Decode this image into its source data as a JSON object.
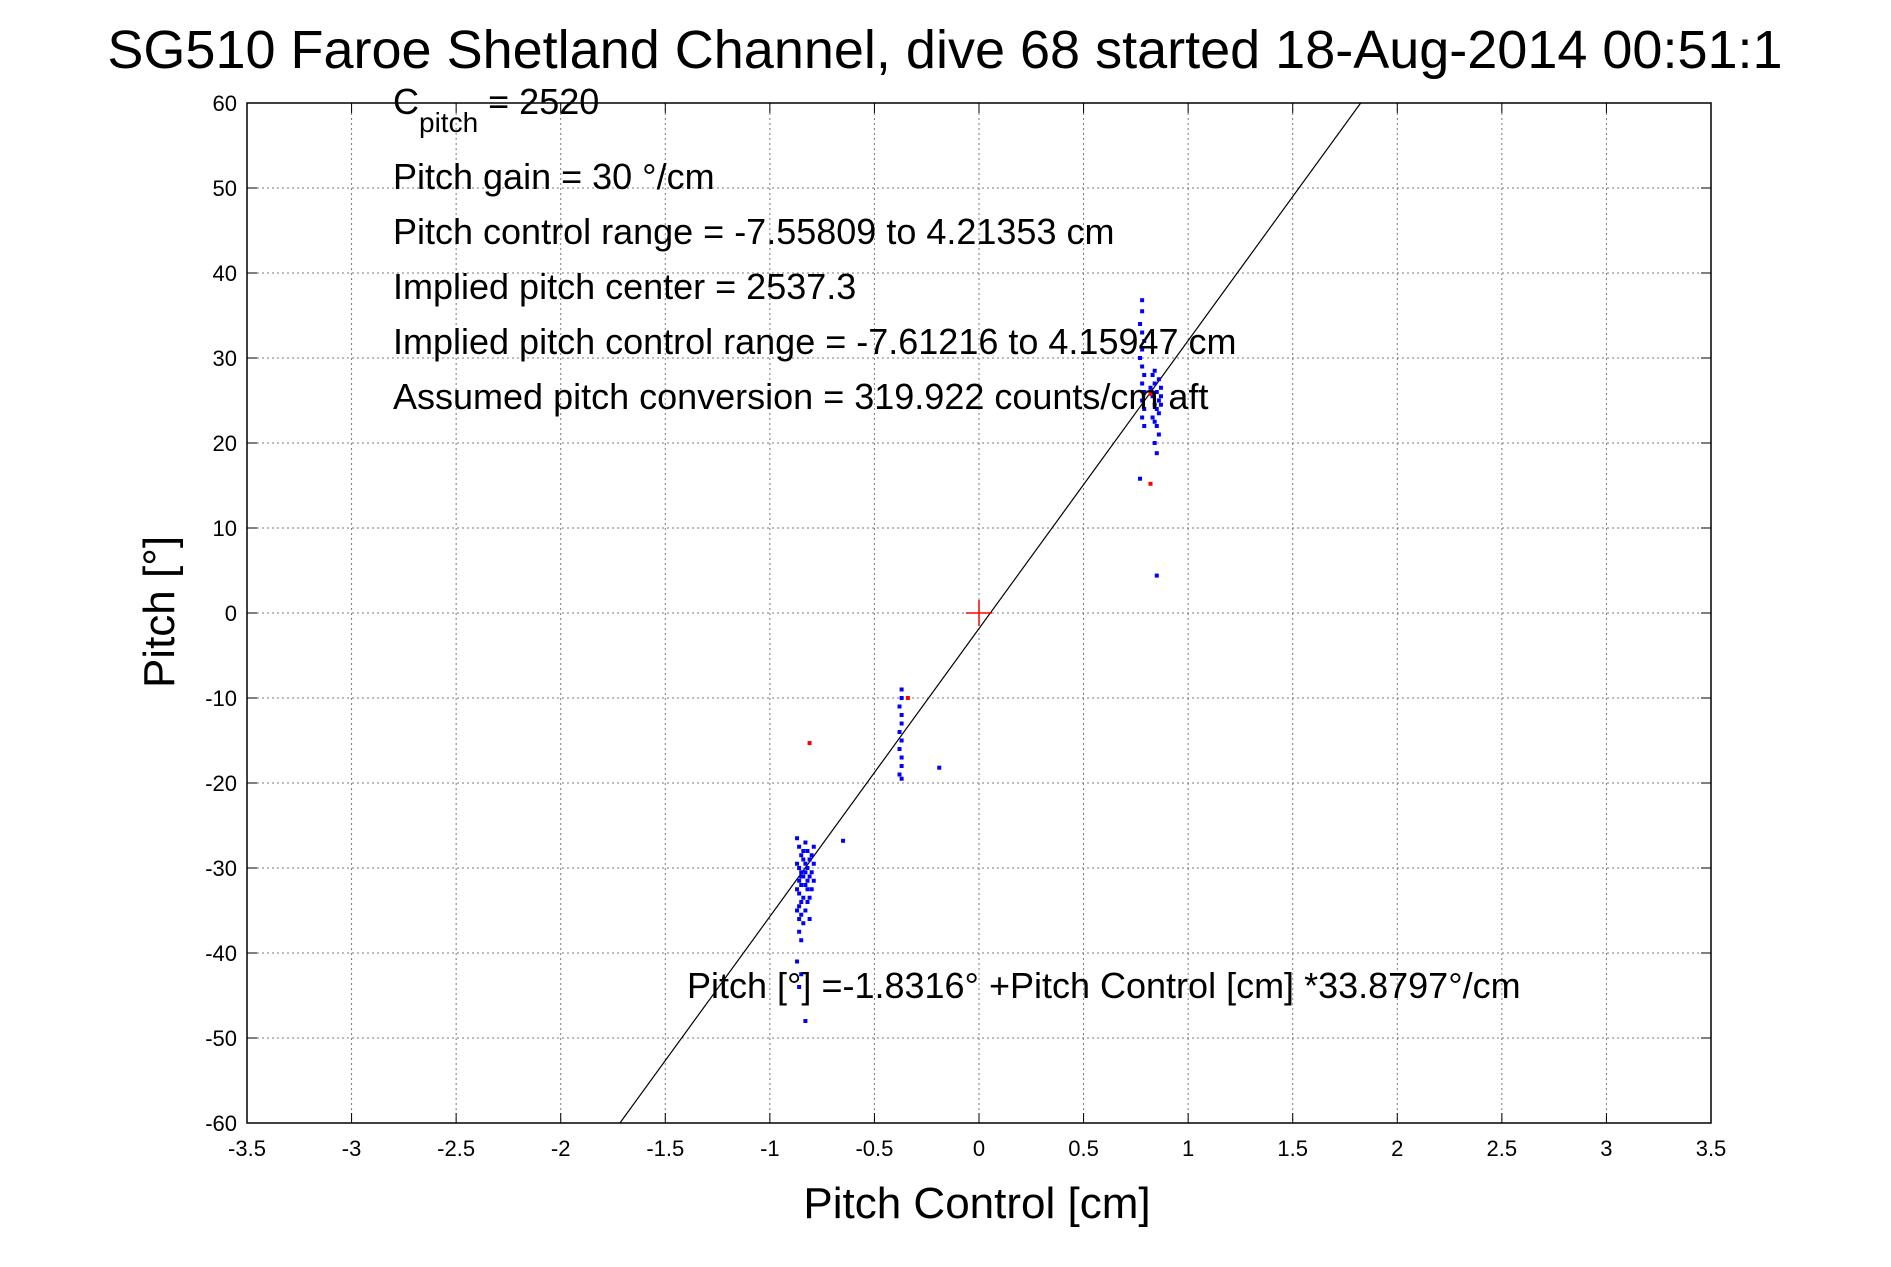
{
  "chart_data": {
    "type": "scatter",
    "title": "SG510 Faroe Shetland Channel, dive 68 started 18-Aug-2014 00:51:1",
    "xlabel": "Pitch Control [cm]",
    "ylabel": "Pitch [°]",
    "xlim": [
      -3.5,
      3.5
    ],
    "ylim": [
      -60,
      60
    ],
    "grid": true,
    "xticks": [
      "-3.5",
      "-3",
      "-2.5",
      "-2",
      "-1.5",
      "-1",
      "-0.5",
      "0",
      "0.5",
      "1",
      "1.5",
      "2",
      "2.5",
      "3",
      "3.5"
    ],
    "yticks": [
      "60",
      "50",
      "40",
      "30",
      "20",
      "10",
      "0",
      "-10",
      "-20",
      "-30",
      "-40",
      "-50",
      "-60"
    ],
    "annotations": {
      "c_pitch_main": "C",
      "c_pitch_sub": "pitch",
      "c_pitch_value": " = 2520",
      "pitch_gain": "Pitch gain = 30 °/cm",
      "pitch_control_range": "Pitch control range = -7.55809 to 4.21353 cm",
      "implied_pitch_center": "Implied pitch center = 2537.3",
      "implied_pitch_control_range": "Implied pitch control range = -7.61216 to 4.15947 cm",
      "assumed_pitch_conversion": "Assumed pitch conversion = 319.922 counts/cm aft",
      "fit_equation": "Pitch [°] =-1.8316° +Pitch Control [cm] *33.8797°/cm"
    },
    "fit_line": {
      "intercept": -1.8316,
      "slope": 33.8797
    },
    "center_marker": {
      "x": 0,
      "y": 0,
      "color": "#ff0000"
    },
    "series": [
      {
        "color": "#0000ff",
        "points": [
          [
            -0.87,
            -26.5
          ],
          [
            -0.86,
            -27.5
          ],
          [
            -0.85,
            -28.5
          ],
          [
            -0.87,
            -29.5
          ],
          [
            -0.86,
            -30.0
          ],
          [
            -0.85,
            -30.5
          ],
          [
            -0.84,
            -31.0
          ],
          [
            -0.86,
            -31.5
          ],
          [
            -0.85,
            -32.0
          ],
          [
            -0.87,
            -32.5
          ],
          [
            -0.86,
            -33.0
          ],
          [
            -0.84,
            -33.5
          ],
          [
            -0.85,
            -34.0
          ],
          [
            -0.86,
            -34.5
          ],
          [
            -0.87,
            -35.0
          ],
          [
            -0.85,
            -35.5
          ],
          [
            -0.86,
            -36.0
          ],
          [
            -0.84,
            -36.5
          ],
          [
            -0.86,
            -37.5
          ],
          [
            -0.85,
            -38.5
          ],
          [
            -0.87,
            -41.0
          ],
          [
            -0.85,
            -42.5
          ],
          [
            -0.86,
            -44.0
          ],
          [
            -0.83,
            -48.0
          ],
          [
            -0.83,
            -27.0
          ],
          [
            -0.82,
            -28.0
          ],
          [
            -0.81,
            -29.0
          ],
          [
            -0.83,
            -29.5
          ],
          [
            -0.82,
            -30.0
          ],
          [
            -0.8,
            -30.5
          ],
          [
            -0.81,
            -31.0
          ],
          [
            -0.82,
            -31.5
          ],
          [
            -0.83,
            -32.0
          ],
          [
            -0.8,
            -32.5
          ],
          [
            -0.81,
            -33.5
          ],
          [
            -0.82,
            -34.0
          ],
          [
            -0.83,
            -35.0
          ],
          [
            -0.81,
            -36.0
          ],
          [
            -0.79,
            -27.5
          ],
          [
            -0.79,
            -29.5
          ],
          [
            -0.79,
            -31.5
          ],
          [
            -0.84,
            -29.0
          ],
          [
            -0.83,
            -30.5
          ],
          [
            -0.85,
            -31.0
          ],
          [
            -0.82,
            -32.5
          ],
          [
            -0.84,
            -28.0
          ],
          [
            -0.8,
            -28.5
          ],
          [
            -0.65,
            -26.8
          ],
          [
            -0.37,
            -9.0
          ],
          [
            -0.37,
            -10.0
          ],
          [
            -0.38,
            -11.0
          ],
          [
            -0.37,
            -12.0
          ],
          [
            -0.37,
            -13.0
          ],
          [
            -0.38,
            -14.0
          ],
          [
            -0.37,
            -15.0
          ],
          [
            -0.38,
            -16.0
          ],
          [
            -0.37,
            -17.0
          ],
          [
            -0.37,
            -18.0
          ],
          [
            -0.38,
            -19.0
          ],
          [
            -0.37,
            -19.5
          ],
          [
            -0.19,
            -18.2
          ],
          [
            0.78,
            36.8
          ],
          [
            0.78,
            35.5
          ],
          [
            0.77,
            34.0
          ],
          [
            0.78,
            33.0
          ],
          [
            0.79,
            32.0
          ],
          [
            0.78,
            31.0
          ],
          [
            0.77,
            30.0
          ],
          [
            0.78,
            29.0
          ],
          [
            0.79,
            28.0
          ],
          [
            0.78,
            27.0
          ],
          [
            0.79,
            26.0
          ],
          [
            0.78,
            25.0
          ],
          [
            0.79,
            24.0
          ],
          [
            0.78,
            23.0
          ],
          [
            0.79,
            22.0
          ],
          [
            0.77,
            15.8
          ],
          [
            0.82,
            26.5
          ],
          [
            0.83,
            25.5
          ],
          [
            0.84,
            27.0
          ],
          [
            0.85,
            26.0
          ],
          [
            0.86,
            25.0
          ],
          [
            0.84,
            24.5
          ],
          [
            0.85,
            24.0
          ],
          [
            0.86,
            23.5
          ],
          [
            0.83,
            23.0
          ],
          [
            0.84,
            22.5
          ],
          [
            0.85,
            22.0
          ],
          [
            0.86,
            21.0
          ],
          [
            0.84,
            20.0
          ],
          [
            0.85,
            18.8
          ],
          [
            0.86,
            27.5
          ],
          [
            0.87,
            26.5
          ],
          [
            0.87,
            25.5
          ],
          [
            0.87,
            24.5
          ],
          [
            0.83,
            28.0
          ],
          [
            0.84,
            28.5
          ],
          [
            0.85,
            4.4
          ]
        ]
      },
      {
        "color": "#ff0000",
        "points": [
          [
            -0.81,
            -15.3
          ],
          [
            -0.34,
            -10.0
          ],
          [
            0.82,
            15.2
          ],
          [
            0.82,
            25.8
          ]
        ]
      }
    ]
  }
}
